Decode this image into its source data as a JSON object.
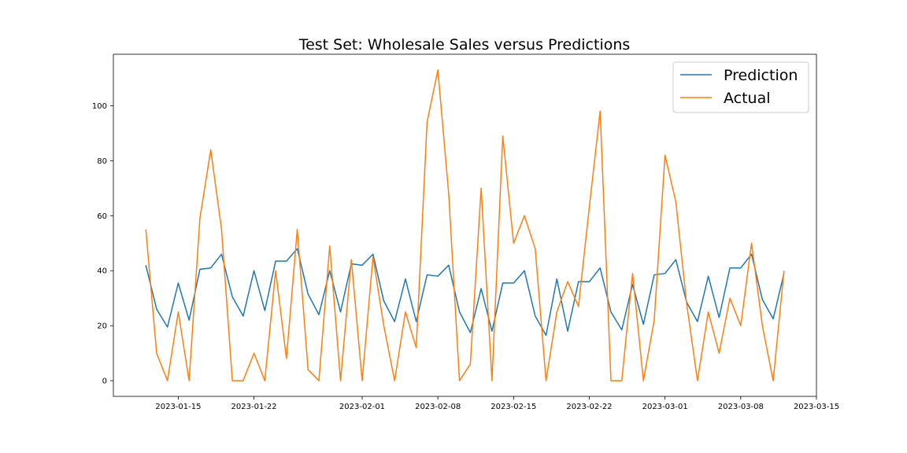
{
  "chart_data": {
    "type": "line",
    "title": "Test Set: Wholesale Sales versus Predictions",
    "xlabel": "",
    "ylabel": "",
    "x_start": "2023-01-12",
    "x_step_days": 1,
    "xlim": [
      "2023-01-09",
      "2023-03-15"
    ],
    "ylim": [
      -5.7,
      118.7
    ],
    "x_ticks": [
      "2023-01-15",
      "2023-01-22",
      "2023-02-01",
      "2023-02-08",
      "2023-02-15",
      "2023-02-22",
      "2023-03-01",
      "2023-03-08",
      "2023-03-15"
    ],
    "y_ticks": [
      0,
      20,
      40,
      60,
      80,
      100
    ],
    "grid": false,
    "legend_position": "top-right",
    "series": [
      {
        "name": "Prediction",
        "color": "#1f77b4",
        "values": [
          42,
          26,
          19.5,
          35.5,
          22,
          40.5,
          41,
          46,
          30.5,
          23.5,
          40,
          25.5,
          43.5,
          43.5,
          48,
          31.5,
          24,
          40,
          25,
          42.5,
          42,
          46,
          29,
          21.5,
          37,
          21.5,
          38.5,
          38,
          42,
          25,
          17.5,
          33.5,
          18,
          35.5,
          35.5,
          40,
          23.5,
          16.5,
          37,
          18,
          36,
          36,
          41,
          25,
          18.5,
          35,
          20.5,
          38.5,
          39,
          44,
          28.5,
          21.5,
          38,
          23,
          41,
          41,
          46,
          29.5,
          22.5,
          39
        ]
      },
      {
        "name": "Actual",
        "color": "#ff7f0e",
        "values": [
          55,
          10,
          0,
          25,
          0,
          59,
          84,
          55,
          0,
          0,
          10,
          0,
          40,
          8,
          55,
          4,
          0,
          49,
          0,
          44,
          0,
          45,
          20,
          0,
          25,
          12,
          94,
          113,
          68,
          0,
          6,
          70,
          0,
          89,
          50,
          60,
          48,
          0,
          25,
          36,
          27,
          63,
          98,
          0,
          0,
          39,
          0,
          22,
          82,
          65,
          28,
          0,
          25,
          10,
          30,
          20,
          50,
          20,
          0,
          40
        ]
      }
    ]
  }
}
